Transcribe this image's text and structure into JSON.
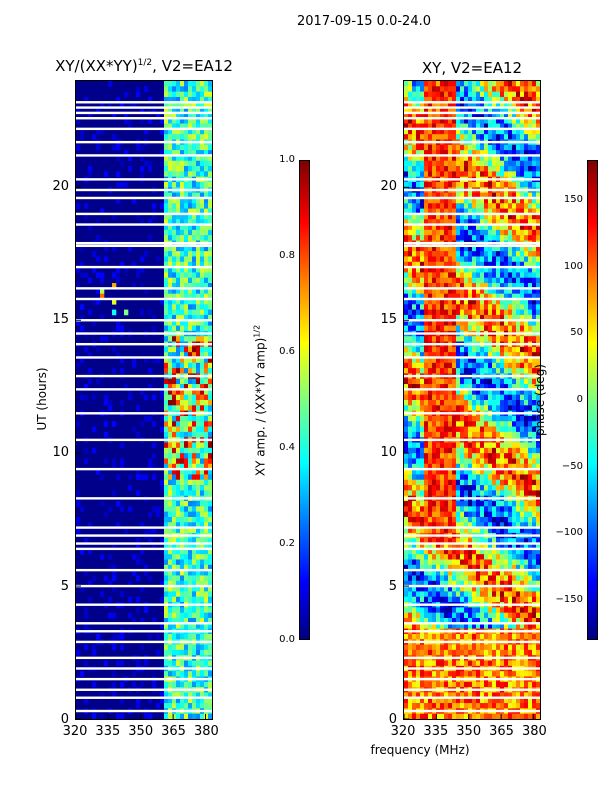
{
  "figure_title": "2017-09-15 0.0-24.0",
  "colors": {
    "background": "#00008b",
    "colormap": [
      "#00007f",
      "#0000ff",
      "#007fff",
      "#00ffff",
      "#7fff7f",
      "#ffff00",
      "#ff7f00",
      "#ff0000",
      "#7f0000"
    ]
  },
  "chart_data": [
    {
      "type": "heatmap",
      "title": "XY/(XX*YY)",
      "title_sup": "1/2",
      "title_suffix": ", V2=EA12",
      "xlabel": "",
      "ylabel": "UT (hours)",
      "xlim": [
        320,
        383
      ],
      "ylim": [
        0,
        24
      ],
      "xticks": [
        320,
        335,
        350,
        365,
        380
      ],
      "xtick_labels": [
        "320",
        "335",
        "350",
        "365",
        "380"
      ],
      "yticks": [
        0,
        5,
        10,
        15,
        20
      ],
      "ytick_labels": [
        "0",
        "5",
        "10",
        "15",
        "20"
      ],
      "colorbar": {
        "label": "XY amp. / (XX*YY amp)",
        "label_sup": "1/2",
        "range": [
          0.0,
          1.0
        ],
        "ticks": [
          0.0,
          0.2,
          0.4,
          0.6,
          0.8,
          1.0
        ],
        "tick_labels": [
          "0.0",
          "0.2",
          "0.4",
          "0.6",
          "0.8",
          "1.0"
        ]
      },
      "flagged_hours": [
        0.3,
        0.8,
        1.1,
        1.5,
        1.9,
        2.3,
        2.9,
        3.3,
        3.6,
        4.3,
        5.0,
        5.6,
        6.4,
        6.6,
        6.9,
        7.2,
        8.3,
        9.4,
        10.5,
        11.5,
        12.4,
        12.9,
        13.6,
        14.1,
        14.5,
        15.0,
        15.8,
        16.2,
        17.0,
        17.8,
        17.9,
        18.6,
        19.0,
        19.6,
        19.9,
        20.3,
        21.2,
        21.7,
        22.2,
        22.6,
        22.8,
        23.0,
        23.2
      ]
    },
    {
      "type": "heatmap",
      "title": "XY, V2=EA12",
      "xlabel": "frequency (MHz)",
      "ylabel": "",
      "xlim": [
        320,
        383
      ],
      "ylim": [
        0,
        24
      ],
      "xticks": [
        320,
        335,
        350,
        365,
        380
      ],
      "xtick_labels": [
        "320",
        "335",
        "350",
        "365",
        "380"
      ],
      "yticks": [
        0,
        5,
        10,
        15,
        20
      ],
      "ytick_labels": [
        "0",
        "5",
        "10",
        "15",
        "20"
      ],
      "colorbar": {
        "label": "phase (deg)",
        "range": [
          -180,
          180
        ],
        "ticks": [
          -150,
          -100,
          -50,
          0,
          50,
          100,
          150
        ],
        "tick_labels": [
          "−150",
          "−100",
          "−50",
          "0",
          "50",
          "100",
          "150"
        ]
      },
      "flagged_hours": [
        0.3,
        0.8,
        1.1,
        1.5,
        1.9,
        2.3,
        2.9,
        3.3,
        3.6,
        4.3,
        5.0,
        5.6,
        6.4,
        6.6,
        6.9,
        7.2,
        8.3,
        9.4,
        10.5,
        11.5,
        12.4,
        12.9,
        13.6,
        14.1,
        14.5,
        15.0,
        15.8,
        16.2,
        17.0,
        17.8,
        17.9,
        18.6,
        19.0,
        19.6,
        19.9,
        20.3,
        21.2,
        21.7,
        22.2,
        22.6,
        22.8,
        23.0,
        23.2
      ]
    }
  ]
}
